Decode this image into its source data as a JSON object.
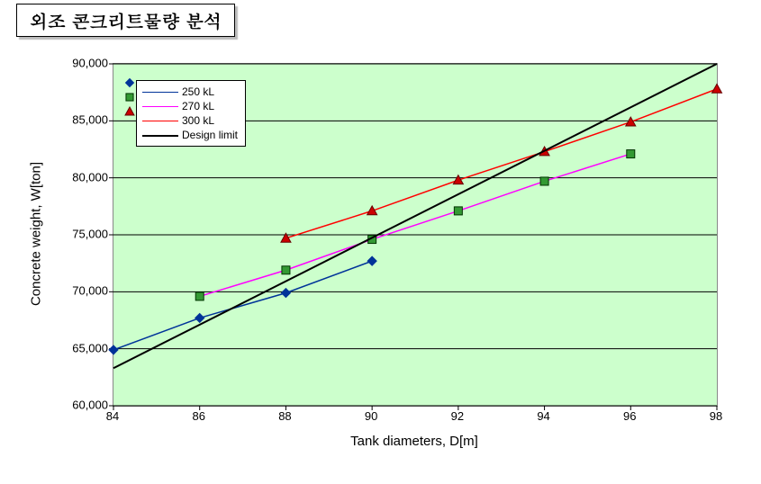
{
  "title": "외조 콘크리트물량 분석",
  "chart": {
    "type": "line",
    "background_color": "#ccffcc",
    "grid_color": "#000000",
    "xlabel": "Tank diameters, D[m]",
    "ylabel": "Concrete weight, W[ton]",
    "label_fontsize": 15,
    "tick_fontsize": 13,
    "xlim": [
      84,
      98
    ],
    "ylim": [
      60000,
      90000
    ],
    "xtick_step": 2,
    "ytick_step": 5000,
    "xticks": [
      84,
      86,
      88,
      90,
      92,
      94,
      96,
      98
    ],
    "yticks": [
      60000,
      65000,
      70000,
      75000,
      80000,
      85000,
      90000
    ],
    "ytick_labels": [
      "60,000",
      "65,000",
      "70,000",
      "75,000",
      "80,000",
      "85,000",
      "90,000"
    ],
    "series": [
      {
        "name": "250 kL",
        "line_color": "#003399",
        "marker": "diamond",
        "marker_fill": "#003399",
        "marker_border": "#003399",
        "x": [
          84,
          86,
          88,
          90
        ],
        "y": [
          64900,
          67700,
          69900,
          72700
        ]
      },
      {
        "name": "270 kL",
        "line_color": "#ff00ff",
        "marker": "square",
        "marker_fill": "#339933",
        "marker_border": "#003300",
        "x": [
          86,
          88,
          90,
          92,
          94,
          96
        ],
        "y": [
          69600,
          71900,
          74600,
          77100,
          79700,
          82100
        ]
      },
      {
        "name": "300 kL",
        "line_color": "#ff0000",
        "marker": "triangle",
        "marker_fill": "#cc0000",
        "marker_border": "#660000",
        "x": [
          88,
          90,
          92,
          94,
          96,
          98
        ],
        "y": [
          74700,
          77100,
          79800,
          82300,
          84900,
          87800
        ]
      },
      {
        "name": "Design limit",
        "line_color": "#000000",
        "marker": "none",
        "line_width": 2,
        "x": [
          84,
          98
        ],
        "y": [
          63300,
          90000
        ]
      }
    ],
    "legend": {
      "position": "upper-left",
      "background": "#ffffff",
      "border": "#000000",
      "fontsize": 12
    }
  }
}
